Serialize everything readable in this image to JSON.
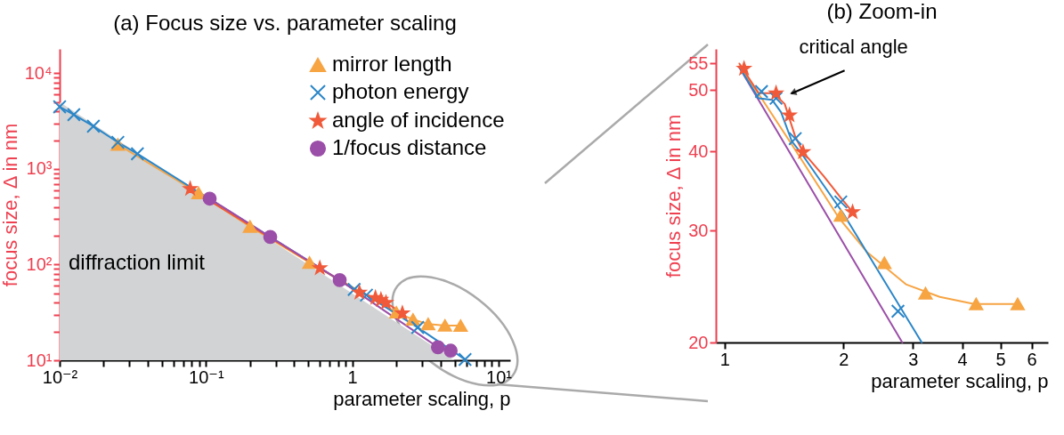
{
  "chart_data": [
    {
      "type": "line",
      "title": "(a) Focus size vs. parameter scaling",
      "xlabel": "parameter scaling, p",
      "ylabel": "focus size, Δ in nm",
      "log": "xy",
      "grid": false,
      "legend": "top right",
      "xlim": [
        0.01,
        12
      ],
      "ylim": [
        10,
        18000
      ],
      "xticks": [
        {
          "value": 0.01,
          "label": "10⁻²"
        },
        {
          "value": 0.02,
          "label": null
        },
        {
          "value": 0.03,
          "label": null
        },
        {
          "value": 0.04,
          "label": null
        },
        {
          "value": 0.05,
          "label": null
        },
        {
          "value": 0.06,
          "label": null
        },
        {
          "value": 0.07,
          "label": null
        },
        {
          "value": 0.08,
          "label": null
        },
        {
          "value": 0.09,
          "label": null
        },
        {
          "value": 0.1,
          "label": "10⁻¹"
        },
        {
          "value": 0.2,
          "label": null
        },
        {
          "value": 0.3,
          "label": null
        },
        {
          "value": 0.4,
          "label": null
        },
        {
          "value": 0.5,
          "label": null
        },
        {
          "value": 0.6,
          "label": null
        },
        {
          "value": 0.7,
          "label": null
        },
        {
          "value": 0.8,
          "label": null
        },
        {
          "value": 0.9,
          "label": null
        },
        1,
        {
          "value": 2,
          "label": null
        },
        {
          "value": 3,
          "label": null
        },
        {
          "value": 4,
          "label": null
        },
        {
          "value": 5,
          "label": null
        },
        {
          "value": 6,
          "label": null
        },
        {
          "value": 7,
          "label": null
        },
        {
          "value": 8,
          "label": null
        },
        {
          "value": 9,
          "label": null
        },
        {
          "value": 10,
          "label": "10¹"
        }
      ],
      "yticks": [
        {
          "value": 10,
          "label": "10¹"
        },
        {
          "value": 20,
          "label": null
        },
        {
          "value": 30,
          "label": null
        },
        {
          "value": 40,
          "label": null
        },
        {
          "value": 50,
          "label": null
        },
        {
          "value": 60,
          "label": null
        },
        {
          "value": 70,
          "label": null
        },
        {
          "value": 80,
          "label": null
        },
        {
          "value": 90,
          "label": null
        },
        {
          "value": 100,
          "label": "10²"
        },
        {
          "value": 200,
          "label": null
        },
        {
          "value": 300,
          "label": null
        },
        {
          "value": 400,
          "label": null
        },
        {
          "value": 500,
          "label": null
        },
        {
          "value": 600,
          "label": null
        },
        {
          "value": 700,
          "label": null
        },
        {
          "value": 800,
          "label": null
        },
        {
          "value": 900,
          "label": null
        },
        {
          "value": 1000,
          "label": "10³"
        },
        {
          "value": 2000,
          "label": null
        },
        {
          "value": 3000,
          "label": null
        },
        {
          "value": 4000,
          "label": null
        },
        {
          "value": 5000,
          "label": null
        },
        {
          "value": 6000,
          "label": null
        },
        {
          "value": 7000,
          "label": null
        },
        {
          "value": 8000,
          "label": null
        },
        {
          "value": 9000,
          "label": null
        },
        {
          "value": 10000,
          "label": "10⁴"
        }
      ],
      "series": [
        {
          "type": "area",
          "name": "diffraction limit",
          "color": "#d1d3d4",
          "marker": "none",
          "x": [
            0.01,
            5
          ],
          "values": [
            5000,
            10
          ]
        },
        {
          "name": "mirror length",
          "color": "#f7a443",
          "marker": "triangle",
          "x": [
            0.025,
            0.089,
            0.2,
            0.51,
            2,
            2.6,
            3.3,
            4.3,
            5.5
          ],
          "values": [
            1800,
            560,
            250,
            105,
            31.7,
            26.7,
            23.9,
            23.1,
            23
          ]
        },
        {
          "name": "photon energy",
          "color": "#2b86c8",
          "marker": "cross",
          "x": [
            0.01,
            0.0125,
            0.017,
            0.025,
            0.034,
            1.03,
            1.25,
            1.4,
            2.8,
            5.9
          ],
          "values": [
            4470,
            3700,
            2800,
            1900,
            1440,
            55,
            48,
            null,
            22,
            10.2
          ]
        },
        {
          "name": "angle of incidence",
          "color": "#f05a3a",
          "marker": "star",
          "x": [
            0.078,
            0.6,
            1.12,
            1.44,
            1.57,
            1.7,
            2.2
          ],
          "values": [
            620,
            92,
            51,
            45,
            43,
            40,
            31
          ]
        },
        {
          "name": "1/focus distance",
          "color": "#9b4fa8",
          "marker": "circle",
          "x": [
            0.106,
            0.275,
            0.82,
            3.85,
            4.7
          ],
          "values": [
            490,
            195,
            69,
            13.7,
            12.6
          ]
        }
      ]
    },
    {
      "type": "line",
      "title": "(b) Zoom-in",
      "xlabel": "parameter scaling, p",
      "ylabel": "focus size, Δ in nm",
      "log": "xy",
      "grid": false,
      "xlim": [
        0.95,
        6.6
      ],
      "ylim": [
        20,
        58
      ],
      "xticks": [
        1,
        2,
        3,
        4,
        5,
        6
      ],
      "yticks": [
        20,
        30,
        40,
        50,
        55
      ],
      "annotations": [
        {
          "text": "critical angle",
          "x": 1.4,
          "y": 49
        }
      ],
      "series": [
        {
          "color": "#9b4fa8",
          "marker": "none",
          "x": [
            1.09,
            2.82
          ],
          "values": [
            54.2,
            20
          ]
        },
        {
          "color": "#f7a443",
          "marker": "none",
          "x": [
            1.09,
            1.24,
            1.48,
            1.95,
            2.29,
            2.88,
            3.51,
            4.29,
            5.55
          ],
          "values": [
            54.5,
            48.5,
            41,
            31.4,
            27.8,
            24.7,
            23.6,
            23,
            23
          ]
        },
        {
          "color": "#2b86c8",
          "marker": "none",
          "x": [
            1.09,
            1.22,
            1.32,
            1.39,
            1.48,
            1.57,
            2,
            3.16
          ],
          "values": [
            54.3,
            48.5,
            48.2,
            46.1,
            41.5,
            39.6,
            31.9,
            20
          ]
        },
        {
          "color": "#f05a3a",
          "marker": "none",
          "x": [
            1.09,
            1.22,
            1.33,
            1.42,
            1.51,
            1.58,
            1.78,
            1.97,
            2.11
          ],
          "values": [
            55,
            49.4,
            49.4,
            47.5,
            42.2,
            39.9,
            36.6,
            33.8,
            32.1
          ]
        },
        {
          "type": "scatter",
          "color": "#f7a443",
          "marker": "triangle",
          "x": [
            1.97,
            2.54,
            3.23,
            4.34,
            5.53
          ],
          "values": [
            31.7,
            26.7,
            23.9,
            23,
            23
          ]
        },
        {
          "type": "scatter",
          "color": "#2b86c8",
          "marker": "cross",
          "x": [
            1.24,
            1.35,
            1.51,
            1.97,
            2.75
          ],
          "values": [
            49.7,
            48.5,
            41.9,
            33.3,
            22.4
          ]
        },
        {
          "type": "scatter",
          "color": "#f05a3a",
          "marker": "star",
          "x": [
            1.12,
            1.35,
            1.46,
            1.58,
            2.11
          ],
          "values": [
            54,
            49.4,
            45.6,
            39.9,
            32.1
          ]
        }
      ]
    }
  ]
}
